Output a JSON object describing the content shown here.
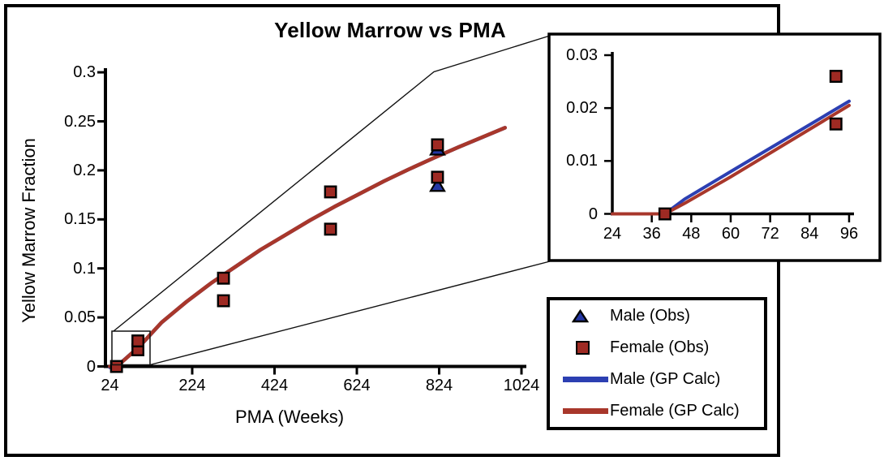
{
  "chart_data": {
    "type": "scatter",
    "title": "Yellow Marrow vs PMA",
    "xlabel": "PMA (Weeks)",
    "ylabel": "Yellow Marrow Fraction",
    "main_axes": {
      "xlim": [
        24,
        1024
      ],
      "ylim": [
        0,
        0.3
      ],
      "x_tick_values": [
        24,
        224,
        424,
        624,
        824,
        1024
      ],
      "x_tick_labels": [
        "24",
        "224",
        "424",
        "624",
        "824",
        "1024"
      ],
      "x_ticks_marked": [
        224,
        424,
        624,
        824,
        1024
      ],
      "y_tick_values": [
        0,
        0.05,
        0.1,
        0.15,
        0.2,
        0.25,
        0.3
      ],
      "y_tick_labels": [
        "0",
        "0.05",
        "0.1",
        "0.15",
        "0.2",
        "0.25",
        "0.3"
      ],
      "grid": false
    },
    "inset_axes": {
      "xlim": [
        24,
        96
      ],
      "ylim": [
        0,
        0.03
      ],
      "x_tick_values": [
        24,
        36,
        48,
        60,
        72,
        84,
        96
      ],
      "x_tick_labels": [
        "24",
        "36",
        "48",
        "60",
        "72",
        "84",
        "96"
      ],
      "x_ticks_marked": [
        36,
        48,
        60,
        72,
        84,
        96
      ],
      "y_tick_values": [
        0,
        0.01,
        0.02,
        0.03
      ],
      "y_tick_labels": [
        "0",
        "0.01",
        "0.02",
        "0.03"
      ],
      "grid": false
    },
    "series": [
      {
        "name": "Male (Obs)",
        "kind": "scatter",
        "marker": "triangle",
        "color": "#2437A5",
        "points": [
          [
            820,
            0.222
          ],
          [
            820,
            0.185
          ]
        ]
      },
      {
        "name": "Female (Obs)",
        "kind": "scatter",
        "marker": "square",
        "color": "#9E2A23",
        "points": [
          [
            40,
            0
          ],
          [
            92,
            0.017
          ],
          [
            92,
            0.026
          ],
          [
            300,
            0.067
          ],
          [
            300,
            0.09
          ],
          [
            560,
            0.14
          ],
          [
            560,
            0.178
          ],
          [
            820,
            0.193
          ],
          [
            820,
            0.226
          ]
        ]
      },
      {
        "name": "Male (GP Calc)",
        "kind": "line",
        "color": "#2C3FB2",
        "points": [
          [
            24,
            0
          ],
          [
            40,
            0
          ],
          [
            46,
            0.0028
          ],
          [
            60,
            0.008
          ],
          [
            96,
            0.0213
          ],
          [
            150,
            0.0458
          ],
          [
            210,
            0.0668
          ],
          [
            270,
            0.0858
          ],
          [
            330,
            0.1028
          ],
          [
            390,
            0.1198
          ],
          [
            450,
            0.1348
          ],
          [
            510,
            0.1498
          ],
          [
            570,
            0.1638
          ],
          [
            630,
            0.1768
          ],
          [
            690,
            0.1898
          ],
          [
            750,
            0.2018
          ],
          [
            810,
            0.2133
          ],
          [
            870,
            0.2243
          ],
          [
            930,
            0.2348
          ],
          [
            984,
            0.2443
          ]
        ]
      },
      {
        "name": "Female (GP Calc)",
        "kind": "line",
        "color": "#A8372B",
        "points": [
          [
            24,
            0
          ],
          [
            40,
            0
          ],
          [
            46,
            0.002
          ],
          [
            60,
            0.007
          ],
          [
            96,
            0.0205
          ],
          [
            150,
            0.045
          ],
          [
            210,
            0.066
          ],
          [
            270,
            0.085
          ],
          [
            330,
            0.102
          ],
          [
            390,
            0.119
          ],
          [
            450,
            0.134
          ],
          [
            510,
            0.149
          ],
          [
            570,
            0.163
          ],
          [
            630,
            0.176
          ],
          [
            690,
            0.189
          ],
          [
            750,
            0.201
          ],
          [
            810,
            0.2125
          ],
          [
            870,
            0.2235
          ],
          [
            930,
            0.234
          ],
          [
            984,
            0.2435
          ]
        ]
      }
    ],
    "legend": {
      "position": "bottom-right",
      "entries": [
        "Male (Obs)",
        "Female (Obs)",
        "Male (GP Calc)",
        "Female (GP Calc)"
      ]
    }
  }
}
